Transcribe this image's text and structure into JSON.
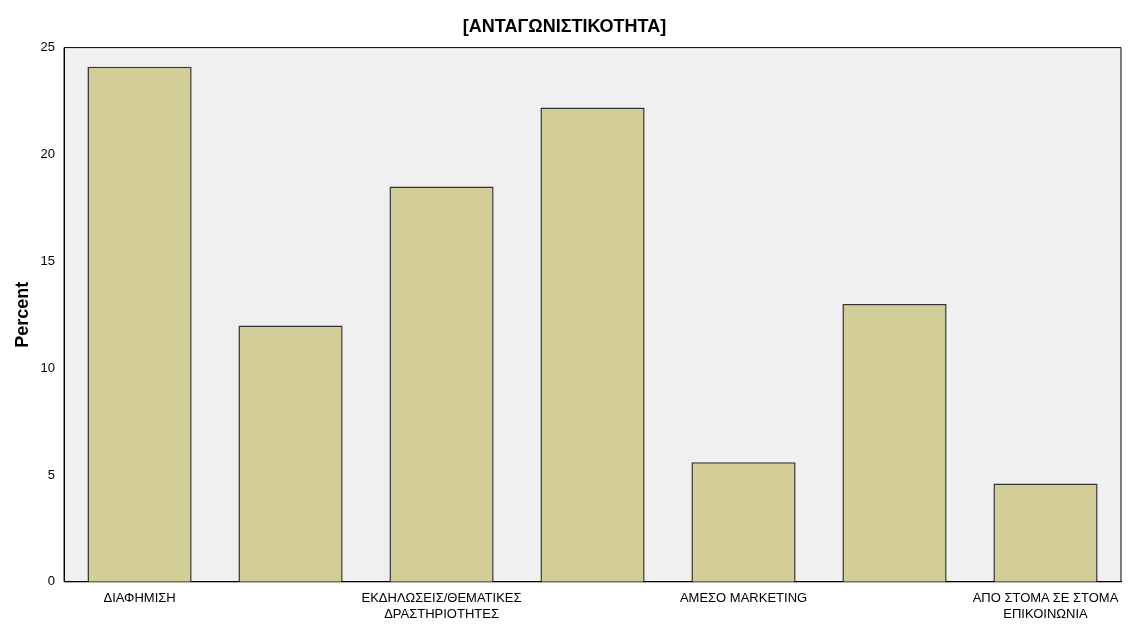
{
  "chart_data": {
    "type": "bar",
    "title": "[ΑΝΤΑΓΩΝΙΣΤΙΚΟΤΗΤΑ]",
    "ylabel": "Percent",
    "categories": [
      "ΔΙΑΦΗΜΙΣΗ",
      null,
      "ΕΚΔΗΛΩΣΕΙΣ/ΘΕΜΑΤΙΚΕΣ\nΔΡΑΣΤΗΡΙΟΤΗΤΕΣ",
      null,
      "ΑΜΕΣΟ MARKETING",
      null,
      "ΑΠΟ ΣΤΟΜΑ ΣΕ ΣΤΟΜΑ\nΕΠΙΚΟΙΝΩΝΙΑ"
    ],
    "values": [
      24.1,
      12.0,
      18.5,
      22.2,
      5.6,
      13.0,
      4.6
    ],
    "color": "#d3ce97",
    "ylim": [
      0,
      25
    ],
    "yticks": [
      0,
      5,
      10,
      15,
      20,
      25
    ],
    "grid": false,
    "legend": false
  }
}
